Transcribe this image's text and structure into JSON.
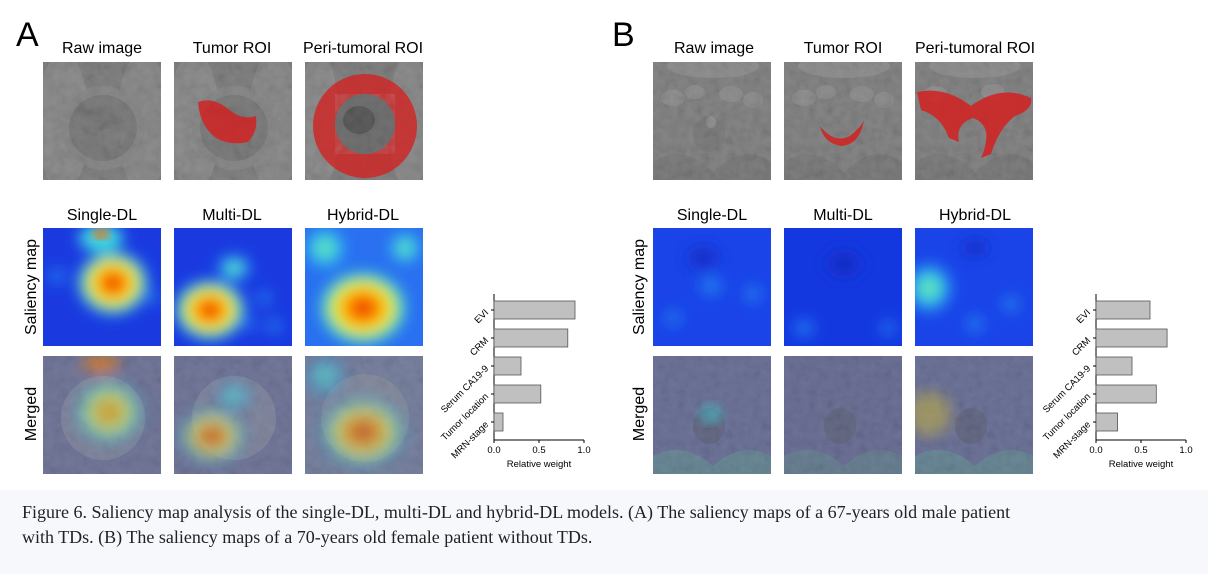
{
  "panels": {
    "a": {
      "letter": "A",
      "top_titles": [
        "Raw image",
        "Tumor ROI",
        "Peri-tumoral ROI"
      ],
      "model_titles": [
        "Single-DL",
        "Multi-DL",
        "Hybrid-DL"
      ],
      "row_labels": [
        "Saliency map",
        "Merged"
      ]
    },
    "b": {
      "letter": "B",
      "top_titles": [
        "Raw image",
        "Tumor ROI",
        "Peri-tumoral ROI"
      ],
      "model_titles": [
        "Single-DL",
        "Multi-DL",
        "Hybrid-DL"
      ],
      "row_labels": [
        "Saliency map",
        "Merged"
      ]
    }
  },
  "colors": {
    "bar_fill": "#c0c0c0",
    "bar_stroke": "#555555",
    "roi_red": "#d42020",
    "saliency_low": "#1030d8"
  },
  "chart_data": [
    {
      "type": "bar",
      "orientation": "horizontal",
      "panel": "A",
      "categories": [
        "EVI",
        "CRM",
        "Serum CA19-9",
        "Tumor location",
        "MRN-stage"
      ],
      "values": [
        0.9,
        0.82,
        0.3,
        0.52,
        0.1
      ],
      "xlabel": "Relative weight",
      "xlim": [
        0,
        1.0
      ],
      "xticks": [
        "0.0",
        "0.5",
        "1.0"
      ]
    },
    {
      "type": "bar",
      "orientation": "horizontal",
      "panel": "B",
      "categories": [
        "EVI",
        "CRM",
        "Serum CA19-9",
        "Tumor location",
        "MRN-stage"
      ],
      "values": [
        0.6,
        0.79,
        0.4,
        0.67,
        0.24
      ],
      "xlabel": "Relative weight",
      "xlim": [
        0,
        1.0
      ],
      "xticks": [
        "0.0",
        "0.5",
        "1.0"
      ]
    }
  ],
  "caption": {
    "text": "Figure 6. Saliency map analysis of the single-DL, multi-DL and hybrid-DL models. (A) The saliency maps of a 67-years old male patient with TDs. (B) The saliency maps of a 70-years old female patient without TDs."
  }
}
